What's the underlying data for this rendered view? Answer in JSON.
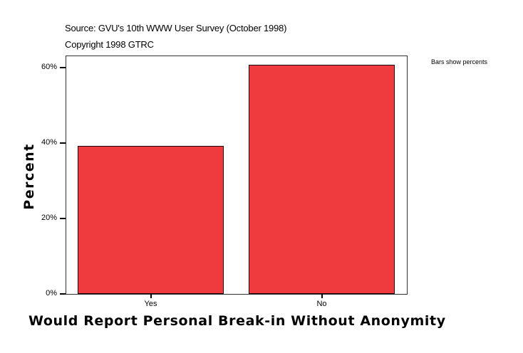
{
  "header": {
    "source": "Source: GVU's 10th WWW User Survey (October 1998)",
    "copyright": "Copyright 1998 GTRC"
  },
  "note": "Bars show percents",
  "chart_data": {
    "type": "bar",
    "title": "",
    "categories": [
      "Yes",
      "No"
    ],
    "values": [
      39.3,
      60.7
    ],
    "units": "percent",
    "xlabel": "Would Report Personal Break-in Without Anonymity",
    "ylabel": "Percent",
    "ylim": [
      0,
      63
    ],
    "yticks": [
      0,
      20,
      40,
      60
    ],
    "ytick_labels": [
      "0%",
      "20%",
      "40%",
      "60%"
    ],
    "grid": false,
    "legend": "none",
    "bar_color": "#ef3b3e",
    "annotations": [
      "Bars show percents"
    ]
  }
}
